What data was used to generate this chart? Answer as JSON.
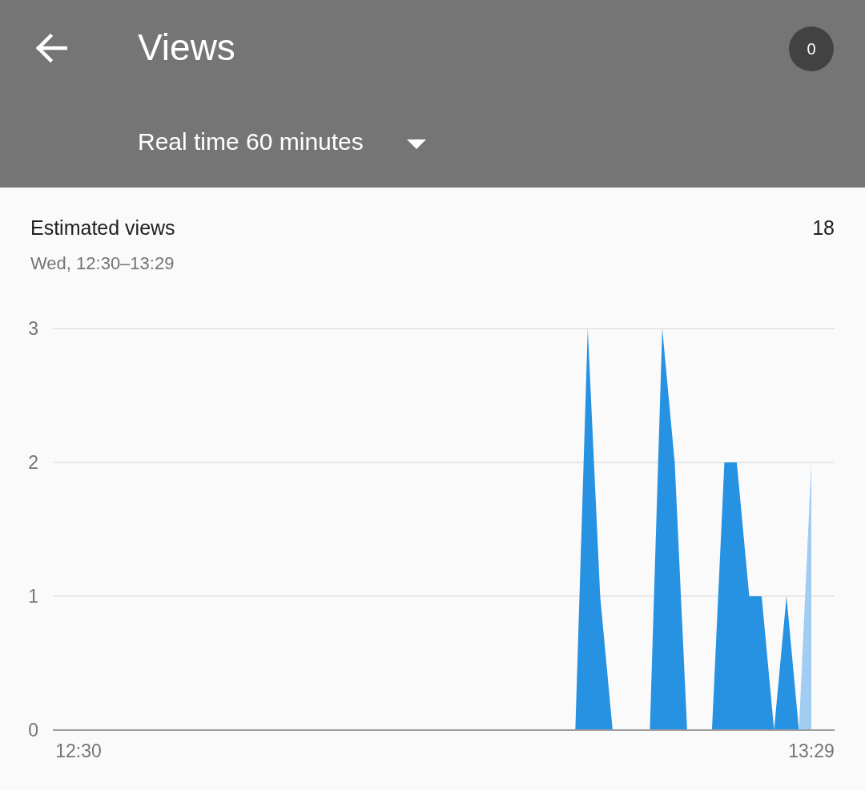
{
  "chart_data": {
    "type": "area",
    "title": "Estimated views",
    "subtitle": "Wed, 12:30–13:29",
    "annotations": [
      "Views",
      "0",
      "Real time 60 minutes",
      "18"
    ],
    "categories": [
      "12:30",
      null,
      null,
      null,
      null,
      null,
      null,
      null,
      null,
      null,
      null,
      null,
      null,
      null,
      null,
      null,
      null,
      null,
      null,
      null,
      null,
      null,
      null,
      null,
      null,
      null,
      null,
      null,
      null,
      null,
      null,
      null,
      null,
      null,
      null,
      null,
      null,
      null,
      null,
      null,
      null,
      null,
      null,
      null,
      null,
      null,
      null,
      null,
      null,
      null,
      null,
      null,
      null,
      null,
      null,
      null,
      null,
      null,
      null,
      "13:29"
    ],
    "series": [
      {
        "color": "#2791e2",
        "values": [
          0,
          0,
          0,
          0,
          0,
          0,
          0,
          0,
          0,
          0,
          0,
          0,
          0,
          0,
          0,
          0,
          0,
          0,
          0,
          0,
          0,
          0,
          0,
          0,
          0,
          0,
          0,
          0,
          0,
          0,
          0,
          0,
          0,
          0,
          0,
          0,
          0,
          0,
          0,
          0,
          0,
          3,
          1,
          0,
          0,
          0,
          0,
          3,
          2,
          0,
          0,
          0,
          2,
          2,
          1,
          1,
          0,
          1,
          0,
          null
        ]
      },
      {
        "color": "#a1cdf3",
        "values": [
          null,
          null,
          null,
          null,
          null,
          null,
          null,
          null,
          null,
          null,
          null,
          null,
          null,
          null,
          null,
          null,
          null,
          null,
          null,
          null,
          null,
          null,
          null,
          null,
          null,
          null,
          null,
          null,
          null,
          null,
          null,
          null,
          null,
          null,
          null,
          null,
          null,
          null,
          null,
          null,
          null,
          null,
          null,
          null,
          null,
          null,
          null,
          null,
          null,
          null,
          null,
          null,
          null,
          null,
          null,
          null,
          null,
          null,
          0,
          2
        ]
      }
    ],
    "ylim": [
      0,
      3
    ],
    "yticks": [
      0,
      1,
      2,
      3
    ],
    "grid": "y"
  }
}
